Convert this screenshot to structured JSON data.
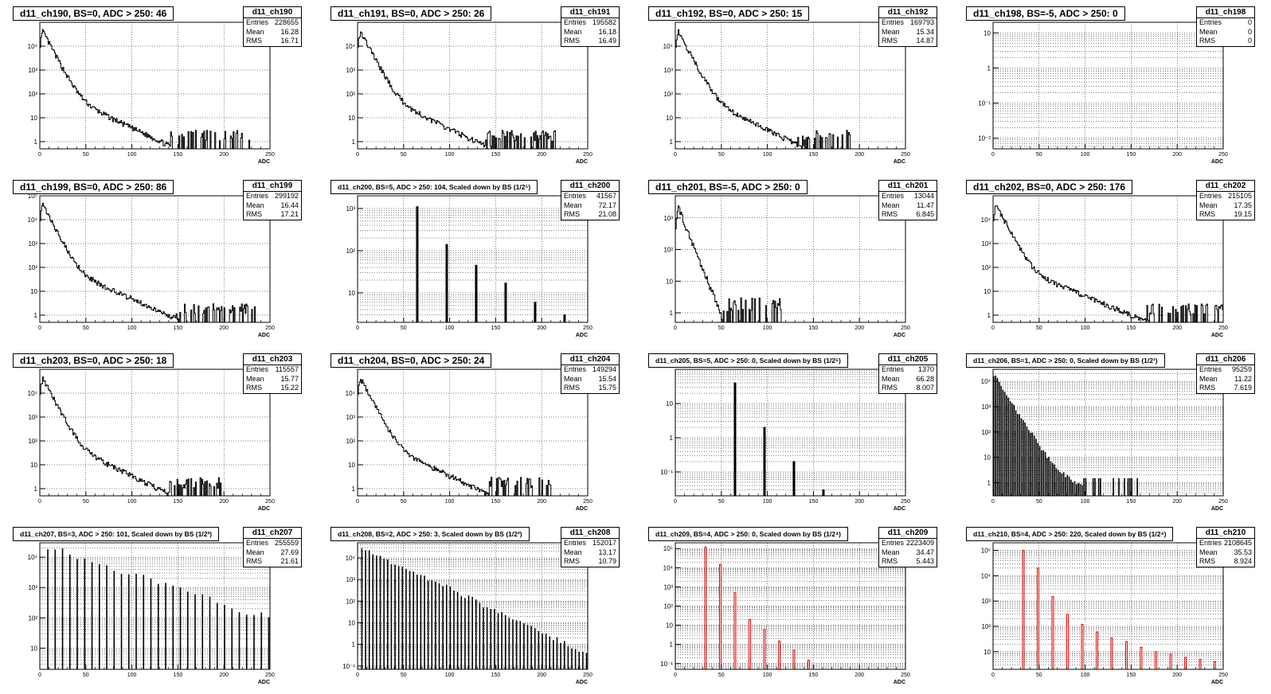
{
  "panels": [
    {
      "id": "d11_ch190",
      "title": "d11_ch190, BS=0, ADC > 250: 46",
      "entries": "228655",
      "mean": "16.28",
      "rms": "16.71",
      "kind": "decay",
      "decade": 0.92,
      "tail": 170,
      "ymin": 0.5,
      "ymax": 100000,
      "yticks": [
        "1",
        "10",
        "10²",
        "10³",
        "10⁴"
      ],
      "color": "#000000"
    },
    {
      "id": "d11_ch191",
      "title": "d11_ch191, BS=0, ADC > 250: 26",
      "entries": "195582",
      "mean": "16.18",
      "rms": "16.49",
      "kind": "decay",
      "decade": 0.9,
      "tail": 155,
      "ymin": 0.5,
      "ymax": 100000,
      "yticks": [
        "1",
        "10",
        "10²",
        "10³",
        "10⁴"
      ],
      "color": "#000000"
    },
    {
      "id": "d11_ch192",
      "title": "d11_ch192, BS=0, ADC > 250: 15",
      "entries": "169793",
      "mean": "15.34",
      "rms": "14.87",
      "kind": "decay",
      "decade": 0.88,
      "tail": 135,
      "ymin": 0.5,
      "ymax": 100000,
      "yticks": [
        "1",
        "10",
        "10²",
        "10³",
        "10⁴"
      ],
      "color": "#000000"
    },
    {
      "id": "d11_ch198",
      "title": "d11_ch198, BS=-5, ADC > 250: 0",
      "entries": "0",
      "mean": "0",
      "rms": "0",
      "kind": "empty",
      "ymin": 0.005,
      "ymax": 20,
      "yticks": [
        "10⁻²",
        "10⁻¹",
        "1",
        "10"
      ],
      "color": "#000000"
    },
    {
      "id": "d11_ch199",
      "title": "d11_ch199, BS=0, ADC > 250: 86",
      "entries": "299192",
      "mean": "16.44",
      "rms": "17.21",
      "kind": "decay",
      "decade": 0.98,
      "tail": 175,
      "ymin": 0.5,
      "ymax": 100000,
      "yticks": [
        "1",
        "10",
        "10²",
        "10³",
        "10⁴",
        "10⁵"
      ],
      "color": "#000000"
    },
    {
      "id": "d11_ch200",
      "title": "d11_ch200, BS=5, ADC > 250: 104, Scaled down by BS (1/2⁵)",
      "small": true,
      "entries": "41567",
      "mean": "72.17",
      "rms": "21.08",
      "kind": "spikes",
      "spikes": [
        [
          64,
          1100
        ],
        [
          96,
          140
        ],
        [
          128,
          45
        ],
        [
          160,
          17
        ],
        [
          192,
          6
        ],
        [
          224,
          3
        ]
      ],
      "ymin": 2,
      "ymax": 2000,
      "yticks": [
        "10",
        "10²",
        "10³"
      ],
      "color": "#000000"
    },
    {
      "id": "d11_ch201",
      "title": "d11_ch201, BS=-5, ADC > 250: 0",
      "entries": "13044",
      "mean": "11.47",
      "rms": "6.845",
      "kind": "decay",
      "decade": 0.18,
      "tail": 60,
      "ymin": 0.5,
      "ymax": 5000,
      "yticks": [
        "1",
        "10",
        "10²",
        "10³"
      ],
      "color": "#000000"
    },
    {
      "id": "d11_ch202",
      "title": "d11_ch202, BS=0, ADC > 250: 176",
      "entries": "215105",
      "mean": "17.35",
      "rms": "19.15",
      "kind": "decay",
      "decade": 1.05,
      "tail": 195,
      "ymin": 0.5,
      "ymax": 100000,
      "yticks": [
        "1",
        "10",
        "10²",
        "10³",
        "10⁴"
      ],
      "color": "#000000"
    },
    {
      "id": "d11_ch203",
      "title": "d11_ch203, BS=0, ADC > 250: 18",
      "entries": "115557",
      "mean": "15.77",
      "rms": "15.22",
      "kind": "decay",
      "decade": 0.9,
      "tail": 140,
      "ymin": 0.5,
      "ymax": 100000,
      "yticks": [
        "1",
        "10",
        "10²",
        "10³",
        "10⁴"
      ],
      "color": "#000000"
    },
    {
      "id": "d11_ch204",
      "title": "d11_ch204, BS=0, ADC > 250: 24",
      "entries": "149294",
      "mean": "15.54",
      "rms": "15.75",
      "kind": "decay",
      "decade": 0.9,
      "tail": 150,
      "ymin": 0.5,
      "ymax": 100000,
      "yticks": [
        "1",
        "10",
        "10²",
        "10³",
        "10⁴"
      ],
      "color": "#000000"
    },
    {
      "id": "d11_ch205",
      "title": "d11_ch205, BS=5, ADC > 250: 0, Scaled down by BS (1/2⁵)",
      "small": true,
      "entries": "1370",
      "mean": "66.28",
      "rms": "8.007",
      "kind": "spikes",
      "spikes": [
        [
          64,
          40
        ],
        [
          96,
          2
        ],
        [
          128,
          0.2
        ],
        [
          160,
          0.03
        ]
      ],
      "ymin": 0.02,
      "ymax": 100,
      "yticks": [
        "10⁻¹",
        "1",
        "10"
      ],
      "color": "#000000"
    },
    {
      "id": "d11_ch206",
      "title": "d11_ch206, BS=1, ADC > 250: 0, Scaled down by BS (1/2¹)",
      "small": true,
      "entries": "95259",
      "mean": "11.22",
      "rms": "7.619",
      "kind": "comb",
      "step": 2,
      "decade": 0.5,
      "tail": 160,
      "ymin": 0.3,
      "ymax": 30000,
      "yticks": [
        "1",
        "10",
        "10²",
        "10³",
        "10⁴"
      ],
      "color": "#000000"
    },
    {
      "id": "d11_ch207",
      "title": "d11_ch207, BS=3, ADC > 250: 101, Scaled down by BS (1/2³)",
      "small": true,
      "entries": "255559",
      "mean": "27.69",
      "rms": "21.61",
      "kind": "comb",
      "step": 8,
      "start": 8,
      "peak": 20000,
      "decade": 2.1,
      "tail": 250,
      "ymin": 2,
      "ymax": 30000,
      "yticks": [
        "10",
        "10²",
        "10³",
        "10⁴"
      ],
      "color": "#000000"
    },
    {
      "id": "d11_ch208",
      "title": "d11_ch208, BS=2, ADC > 250: 3, Scaled down by BS (1/2²)",
      "small": true,
      "entries": "152017",
      "mean": "13.17",
      "rms": "10.79",
      "kind": "comb",
      "step": 4,
      "start": 4,
      "peak": 30000,
      "decade": 1.0,
      "tail": 250,
      "ymin": 0.07,
      "ymax": 50000,
      "yticks": [
        "10⁻¹",
        "1",
        "10",
        "10²",
        "10³",
        "10⁴"
      ],
      "color": "#000000"
    },
    {
      "id": "d11_ch209",
      "title": "d11_ch209, BS=4, ADC > 250: 0, Scaled down by BS (1/2⁴)",
      "small": true,
      "entries": "2223409",
      "mean": "34.47",
      "rms": "5.443",
      "kind": "spikes",
      "spikes": [
        [
          32,
          120000
        ],
        [
          48,
          15000
        ],
        [
          64,
          500
        ],
        [
          80,
          20
        ],
        [
          96,
          6
        ],
        [
          112,
          1.5
        ],
        [
          128,
          0.5
        ],
        [
          144,
          0.15
        ]
      ],
      "ymin": 0.05,
      "ymax": 200000,
      "yticks": [
        "10⁻¹",
        "1",
        "10",
        "10²",
        "10³",
        "10⁴",
        "10⁵"
      ],
      "color": "#dd0000"
    },
    {
      "id": "d11_ch210",
      "title": "d11_ch210, BS=4, ADC > 250: 220, Scaled down by BS (1/2⁴)",
      "small": true,
      "entries": "2108645",
      "mean": "35.53",
      "rms": "8.924",
      "kind": "spikes",
      "spikes": [
        [
          32,
          100000
        ],
        [
          48,
          20000
        ],
        [
          64,
          1500
        ],
        [
          80,
          300
        ],
        [
          96,
          120
        ],
        [
          112,
          60
        ],
        [
          128,
          35
        ],
        [
          144,
          25
        ],
        [
          160,
          15
        ],
        [
          176,
          10
        ],
        [
          192,
          8
        ],
        [
          208,
          6
        ],
        [
          224,
          5
        ],
        [
          240,
          4
        ]
      ],
      "ymin": 2,
      "ymax": 200000,
      "yticks": [
        "10",
        "10²",
        "10³",
        "10⁴",
        "10⁵"
      ],
      "color": "#dd0000"
    }
  ],
  "labels": {
    "entries": "Entries",
    "mean": "Mean",
    "rms": "RMS",
    "xaxis": "ADC"
  },
  "xticks": [
    "0",
    "50",
    "100",
    "150",
    "200",
    "250"
  ],
  "chart_data": {
    "type": "histogram-grid",
    "xlabel": "ADC",
    "xlim": [
      0,
      250
    ],
    "yscale": "log"
  }
}
